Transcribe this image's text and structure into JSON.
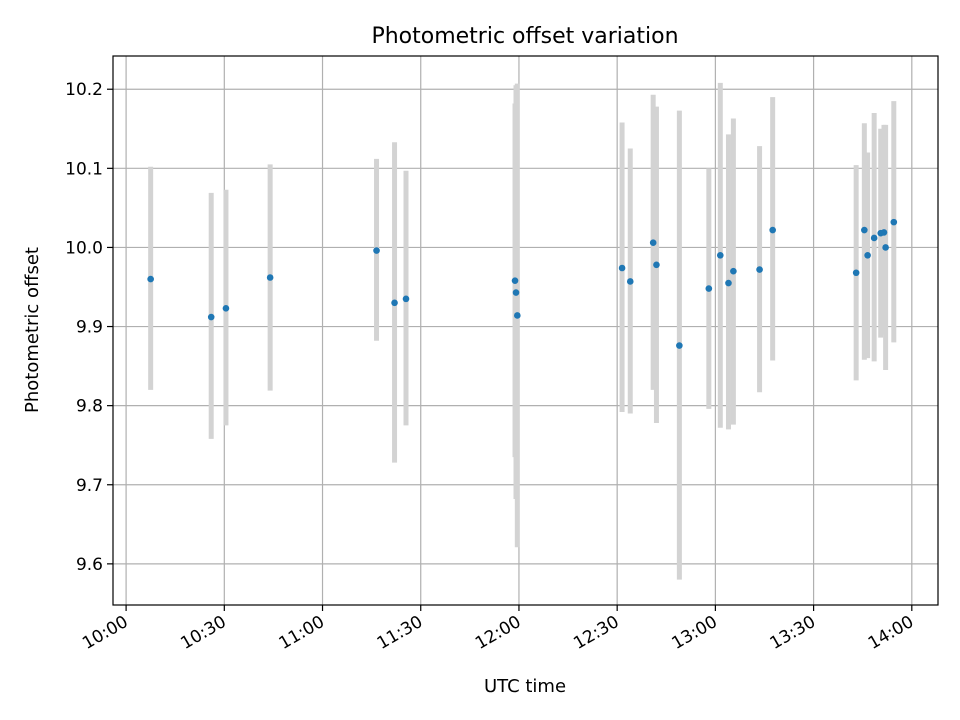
{
  "chart_data": {
    "type": "scatter",
    "title": "Photometric offset variation",
    "xlabel": "UTC time",
    "ylabel": "Photometric offset",
    "xlim_minutes": [
      -4,
      248
    ],
    "ylim": [
      9.548,
      10.242
    ],
    "x_ticks": [
      {
        "minutes": 0,
        "label": "10:00"
      },
      {
        "minutes": 30,
        "label": "10:30"
      },
      {
        "minutes": 60,
        "label": "11:00"
      },
      {
        "minutes": 90,
        "label": "11:30"
      },
      {
        "minutes": 120,
        "label": "12:00"
      },
      {
        "minutes": 150,
        "label": "12:30"
      },
      {
        "minutes": 180,
        "label": "13:00"
      },
      {
        "minutes": 210,
        "label": "13:30"
      },
      {
        "minutes": 240,
        "label": "14:00"
      }
    ],
    "y_ticks": [
      {
        "value": 9.6,
        "label": "9.6"
      },
      {
        "value": 9.7,
        "label": "9.7"
      },
      {
        "value": 9.8,
        "label": "9.8"
      },
      {
        "value": 9.9,
        "label": "9.9"
      },
      {
        "value": 10.0,
        "label": "10.0"
      },
      {
        "value": 10.1,
        "label": "10.1"
      },
      {
        "value": 10.2,
        "label": "10.2"
      }
    ],
    "grid": true,
    "marker_color": "#1f77b4",
    "errorbar_color": "#d3d3d3",
    "points": [
      {
        "t": 7.5,
        "y": 9.96,
        "lo": 9.82,
        "hi": 10.102
      },
      {
        "t": 26.0,
        "y": 9.912,
        "lo": 9.758,
        "hi": 10.069
      },
      {
        "t": 30.5,
        "y": 9.923,
        "lo": 9.775,
        "hi": 10.073
      },
      {
        "t": 44.0,
        "y": 9.962,
        "lo": 9.819,
        "hi": 10.105
      },
      {
        "t": 76.5,
        "y": 9.996,
        "lo": 9.882,
        "hi": 10.112
      },
      {
        "t": 82.0,
        "y": 9.93,
        "lo": 9.728,
        "hi": 10.133
      },
      {
        "t": 85.5,
        "y": 9.935,
        "lo": 9.775,
        "hi": 10.097
      },
      {
        "t": 118.8,
        "y": 9.958,
        "lo": 9.735,
        "hi": 10.182
      },
      {
        "t": 119.1,
        "y": 9.943,
        "lo": 9.682,
        "hi": 10.205
      },
      {
        "t": 119.5,
        "y": 9.914,
        "lo": 9.621,
        "hi": 10.207
      },
      {
        "t": 151.5,
        "y": 9.974,
        "lo": 9.792,
        "hi": 10.158
      },
      {
        "t": 154.0,
        "y": 9.957,
        "lo": 9.79,
        "hi": 10.125
      },
      {
        "t": 161.0,
        "y": 10.006,
        "lo": 9.82,
        "hi": 10.193
      },
      {
        "t": 162.0,
        "y": 9.978,
        "lo": 9.778,
        "hi": 10.178
      },
      {
        "t": 169.0,
        "y": 9.876,
        "lo": 9.58,
        "hi": 10.173
      },
      {
        "t": 178.0,
        "y": 9.948,
        "lo": 9.796,
        "hi": 10.1
      },
      {
        "t": 181.5,
        "y": 9.99,
        "lo": 9.772,
        "hi": 10.208
      },
      {
        "t": 184.0,
        "y": 9.955,
        "lo": 9.77,
        "hi": 10.143
      },
      {
        "t": 185.5,
        "y": 9.97,
        "lo": 9.776,
        "hi": 10.163
      },
      {
        "t": 193.5,
        "y": 9.972,
        "lo": 9.817,
        "hi": 10.128
      },
      {
        "t": 197.5,
        "y": 10.022,
        "lo": 9.857,
        "hi": 10.19
      },
      {
        "t": 223.0,
        "y": 9.968,
        "lo": 9.832,
        "hi": 10.104
      },
      {
        "t": 225.5,
        "y": 10.022,
        "lo": 9.858,
        "hi": 10.157
      },
      {
        "t": 226.5,
        "y": 9.99,
        "lo": 9.86,
        "hi": 10.12
      },
      {
        "t": 228.5,
        "y": 10.012,
        "lo": 9.856,
        "hi": 10.17
      },
      {
        "t": 230.5,
        "y": 10.018,
        "lo": 9.886,
        "hi": 10.15
      },
      {
        "t": 231.5,
        "y": 10.019,
        "lo": 9.89,
        "hi": 10.155
      },
      {
        "t": 232.0,
        "y": 10.0,
        "lo": 9.845,
        "hi": 10.155
      },
      {
        "t": 234.5,
        "y": 10.032,
        "lo": 9.88,
        "hi": 10.185
      }
    ]
  }
}
